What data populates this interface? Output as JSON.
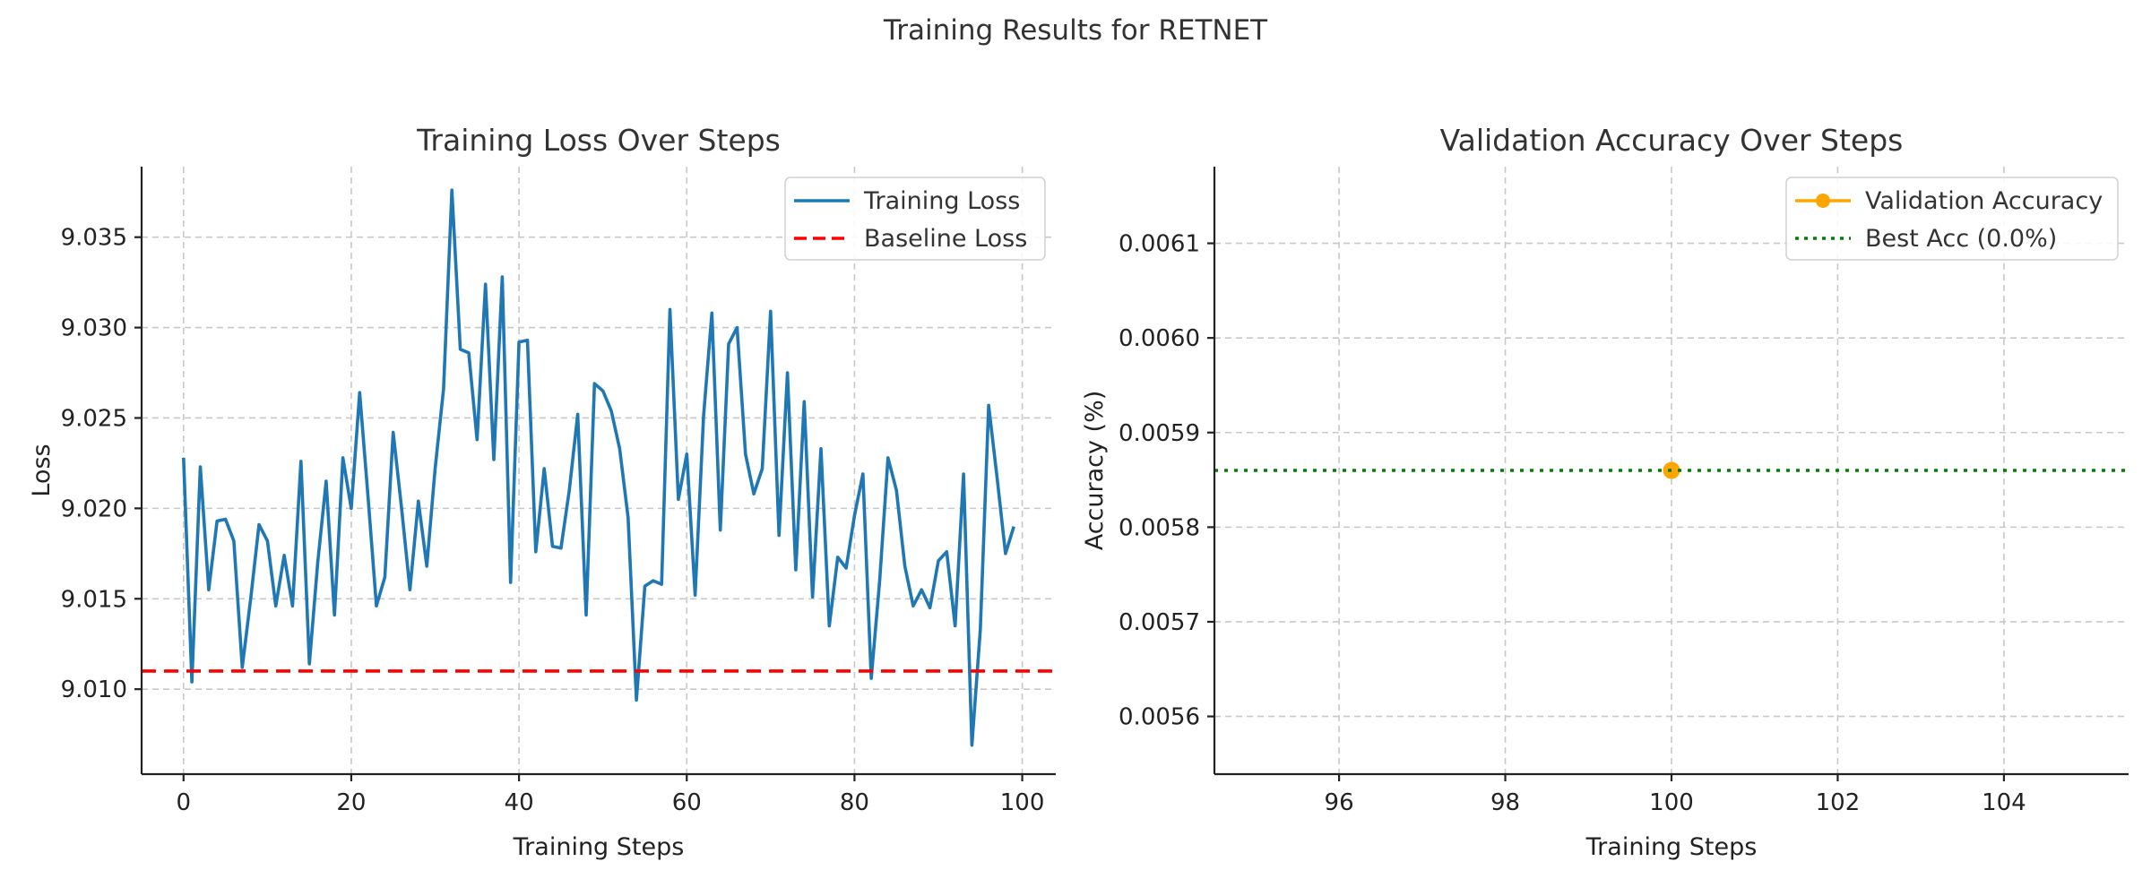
{
  "figure": {
    "suptitle": "Training Results for RETNET"
  },
  "chart_data": [
    {
      "type": "line",
      "title": "Training Loss Over Steps",
      "xlabel": "Training Steps",
      "ylabel": "Loss",
      "xlim": [
        -5,
        104
      ],
      "ylim": [
        9.0053,
        9.0389
      ],
      "xticks": [
        0,
        20,
        40,
        60,
        80,
        100
      ],
      "xtick_labels": [
        "0",
        "20",
        "40",
        "60",
        "80",
        "100"
      ],
      "yticks": [
        9.01,
        9.015,
        9.02,
        9.025,
        9.03,
        9.035
      ],
      "ytick_labels": [
        "9.010",
        "9.015",
        "9.020",
        "9.025",
        "9.030",
        "9.035"
      ],
      "grid": true,
      "legend_position": "upper right",
      "series": [
        {
          "name": "Training Loss",
          "color": "#1f77b4",
          "style": "solid",
          "x": [
            0,
            1,
            2,
            3,
            4,
            5,
            6,
            7,
            8,
            9,
            10,
            11,
            12,
            13,
            14,
            15,
            16,
            17,
            18,
            19,
            20,
            21,
            22,
            23,
            24,
            25,
            26,
            27,
            28,
            29,
            30,
            31,
            32,
            33,
            34,
            35,
            36,
            37,
            38,
            39,
            40,
            41,
            42,
            43,
            44,
            45,
            46,
            47,
            48,
            49,
            50,
            51,
            52,
            53,
            54,
            55,
            56,
            57,
            58,
            59,
            60,
            61,
            62,
            63,
            64,
            65,
            66,
            67,
            68,
            69,
            70,
            71,
            72,
            73,
            74,
            75,
            76,
            77,
            78,
            79,
            80,
            81,
            82,
            83,
            84,
            85,
            86,
            87,
            88,
            89,
            90,
            91,
            92,
            93,
            94,
            95,
            96,
            97,
            98,
            99
          ],
          "values": [
            9.0228,
            9.0104,
            9.0223,
            9.0155,
            9.0193,
            9.0194,
            9.0182,
            9.0112,
            9.015,
            9.0191,
            9.0182,
            9.0146,
            9.0174,
            9.0146,
            9.0226,
            9.0114,
            9.017,
            9.0215,
            9.0141,
            9.0228,
            9.02,
            9.0264,
            9.0206,
            9.0146,
            9.0162,
            9.0242,
            9.02,
            9.0155,
            9.0204,
            9.0168,
            9.0222,
            9.0266,
            9.0376,
            9.0288,
            9.0286,
            9.0238,
            9.0324,
            9.0227,
            9.0328,
            9.0159,
            9.0292,
            9.0293,
            9.0176,
            9.0222,
            9.0179,
            9.0178,
            9.021,
            9.0252,
            9.0141,
            9.0269,
            9.0265,
            9.0254,
            9.0233,
            9.0195,
            9.0094,
            9.0157,
            9.016,
            9.0158,
            9.031,
            9.0205,
            9.023,
            9.0152,
            9.0251,
            9.0308,
            9.0188,
            9.0291,
            9.03,
            9.023,
            9.0208,
            9.0222,
            9.0309,
            9.0185,
            9.0275,
            9.0166,
            9.0259,
            9.0151,
            9.0233,
            9.0135,
            9.0173,
            9.0167,
            9.0196,
            9.0219,
            9.0106,
            9.016,
            9.0228,
            9.021,
            9.0168,
            9.0146,
            9.0155,
            9.0145,
            9.0171,
            9.0176,
            9.0135,
            9.0219,
            9.0069,
            9.0133,
            9.0257,
            9.0217,
            9.0175,
            9.019
          ]
        },
        {
          "name": "Baseline Loss",
          "color": "#ff0000",
          "style": "dashed",
          "hline": 9.011
        }
      ]
    },
    {
      "type": "scatter",
      "title": "Validation Accuracy Over Steps",
      "xlabel": "Training Steps",
      "ylabel": "Accuracy (%)",
      "xlim": [
        94.5,
        105.5
      ],
      "ylim": [
        0.005539,
        0.006181
      ],
      "xticks": [
        96,
        98,
        100,
        102,
        104
      ],
      "xtick_labels": [
        "96",
        "98",
        "100",
        "102",
        "104"
      ],
      "yticks": [
        0.0056,
        0.0057,
        0.0058,
        0.0059,
        0.006,
        0.0061
      ],
      "ytick_labels": [
        "0.0056",
        "0.0057",
        "0.0058",
        "0.0059",
        "0.0060",
        "0.0061"
      ],
      "grid": true,
      "legend_position": "upper right",
      "series": [
        {
          "name": "Validation Accuracy",
          "color": "#ffa500",
          "style": "solid-marker",
          "x": [
            100
          ],
          "values": [
            0.00586
          ]
        },
        {
          "name": "Best Acc (0.0%)",
          "color": "#008000",
          "style": "dotted",
          "hline": 0.00586
        }
      ]
    }
  ]
}
